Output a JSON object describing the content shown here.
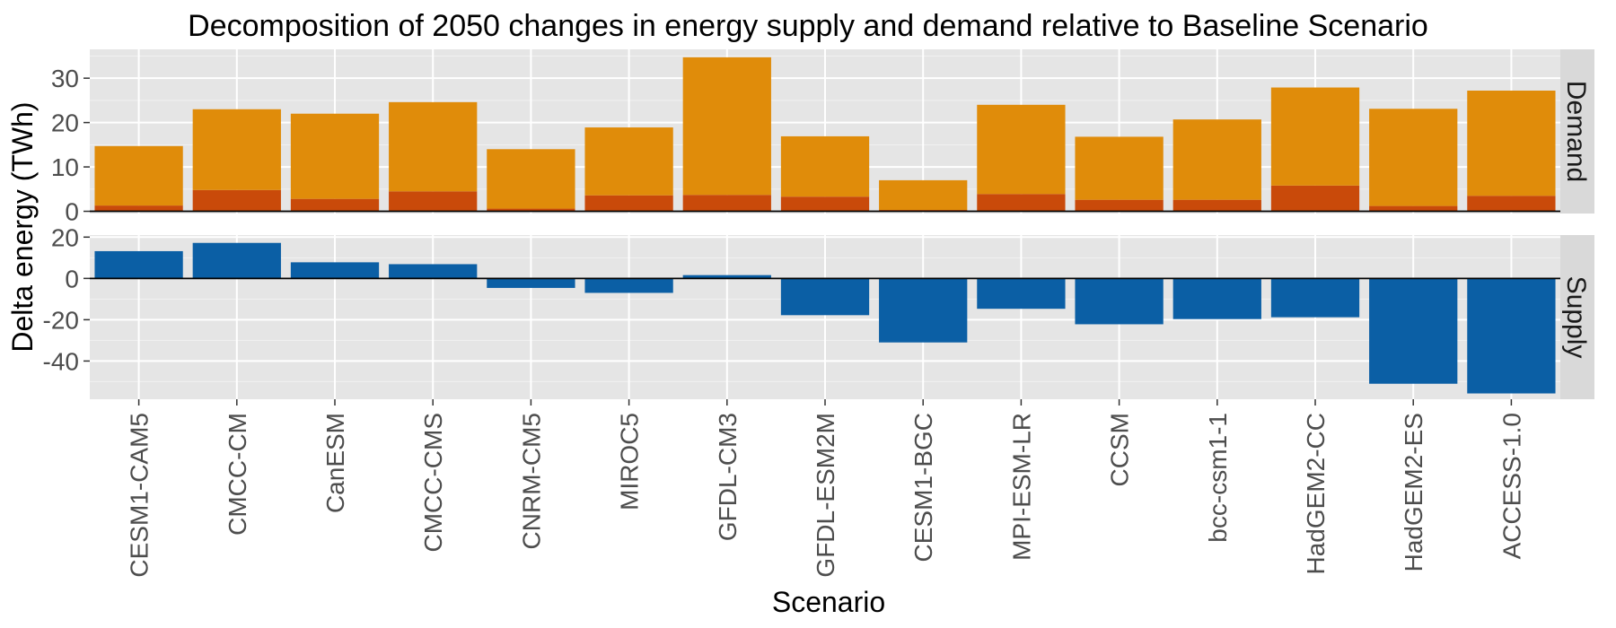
{
  "chart_data": {
    "type": "bar",
    "title": "Decomposition of 2050 changes in energy supply and demand relative to Baseline Scenario",
    "xlabel": "Scenario",
    "ylabel": "Delta energy (TWh)",
    "categories": [
      "CESM1-CAM5",
      "CMCC-CM",
      "CanESM",
      "CMCC-CMS",
      "CNRM-CM5",
      "MIROC5",
      "GFDL-CM3",
      "GFDL-ESM2M",
      "CESM1-BGC",
      "MPI-ESM-LR",
      "CCSM",
      "bcc-csm1-1",
      "HadGEM2-CC",
      "HadGEM2-ES",
      "ACCESS-1.0"
    ],
    "facets": [
      {
        "name": "Demand",
        "ylim": [
          -0.5,
          36.5
        ],
        "yticks": [
          0,
          10,
          20,
          30
        ],
        "stacked": true,
        "series": [
          {
            "color": "#c94a0a",
            "values": [
              1.3,
              4.8,
              2.8,
              4.5,
              0.6,
              3.6,
              3.7,
              3.3,
              0.3,
              3.9,
              2.6,
              2.6,
              5.8,
              1.2,
              3.5
            ]
          },
          {
            "color": "#e08c0a",
            "values": [
              13.4,
              18.2,
              19.2,
              20.1,
              13.4,
              15.3,
              31.0,
              13.6,
              6.7,
              20.1,
              14.2,
              18.1,
              22.1,
              21.9,
              23.7
            ]
          }
        ]
      },
      {
        "name": "Supply",
        "ylim": [
          -58.5,
          21
        ],
        "yticks": [
          -40,
          -20,
          0,
          20
        ],
        "stacked": false,
        "series": [
          {
            "color": "#0b5fa5",
            "values": [
              13.2,
              17.2,
              7.8,
              6.9,
              -4.6,
              -7.0,
              1.6,
              -17.8,
              -31.0,
              -14.7,
              -22.2,
              -19.7,
              -18.8,
              -51.0,
              -55.7
            ]
          }
        ]
      }
    ],
    "grid": true
  }
}
